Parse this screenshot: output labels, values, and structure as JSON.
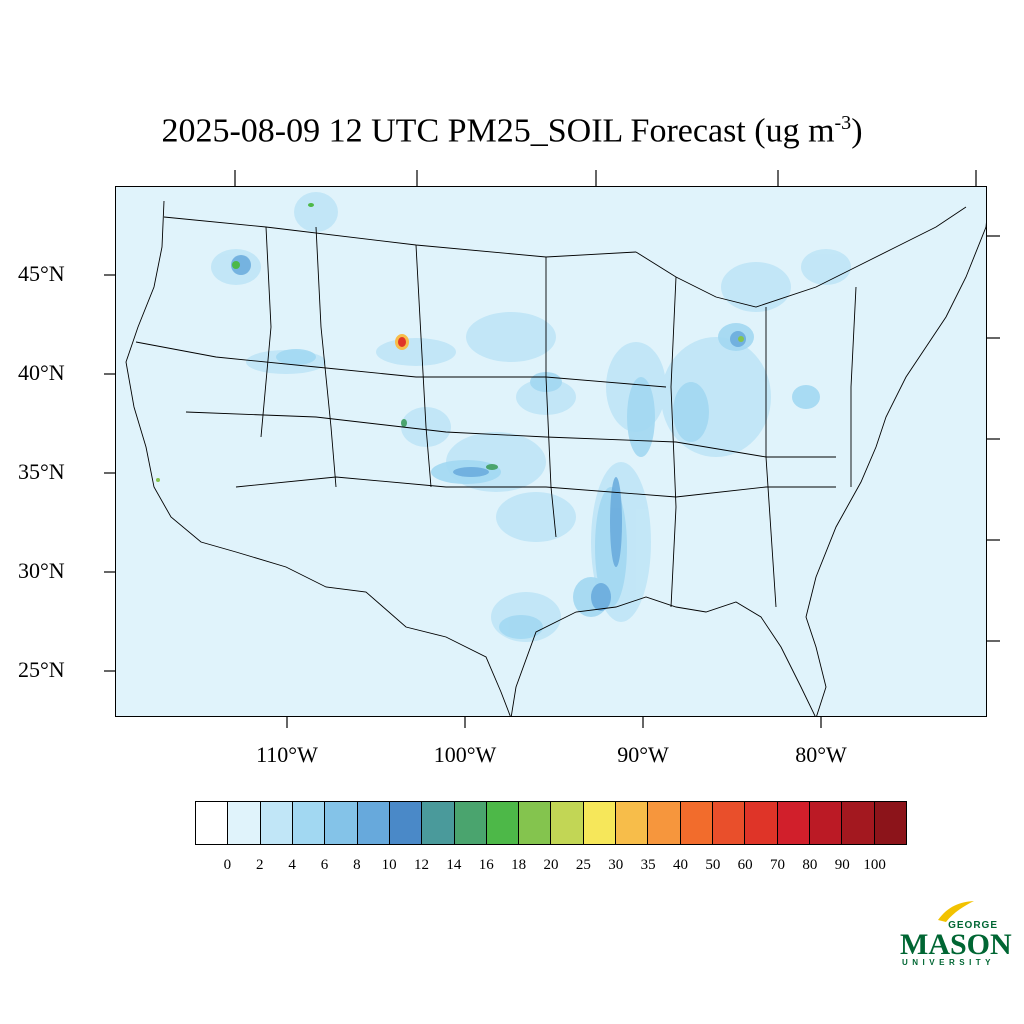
{
  "title": {
    "text": "2025-08-09 12 UTC PM25_SOIL Forecast (ug m",
    "sup": "-3",
    "close": ")"
  },
  "latitude_labels": [
    "45°N",
    "40°N",
    "35°N",
    "30°N",
    "25°N"
  ],
  "longitude_labels": [
    "110°W",
    "100°W",
    "90°W",
    "80°W"
  ],
  "colorbar": {
    "labels": [
      "0",
      "2",
      "4",
      "6",
      "8",
      "10",
      "12",
      "14",
      "16",
      "18",
      "20",
      "25",
      "30",
      "35",
      "40",
      "50",
      "60",
      "70",
      "80",
      "90",
      "100"
    ],
    "colors": [
      "#ffffff",
      "#e0f3fb",
      "#c1e6f7",
      "#a2d8f2",
      "#84c3e8",
      "#67a9dc",
      "#4a89c8",
      "#4a9a9b",
      "#4aa46e",
      "#4db848",
      "#84c44e",
      "#c2d655",
      "#f6e75a",
      "#f7bd4a",
      "#f6963d",
      "#f26c2c",
      "#e94f2b",
      "#df3428",
      "#d11f2b",
      "#bb1a25",
      "#a3181f",
      "#8c141a"
    ]
  },
  "logo": {
    "line1": "GEORGE",
    "line2": "MASON",
    "line3": "UNIVERSITY"
  }
}
